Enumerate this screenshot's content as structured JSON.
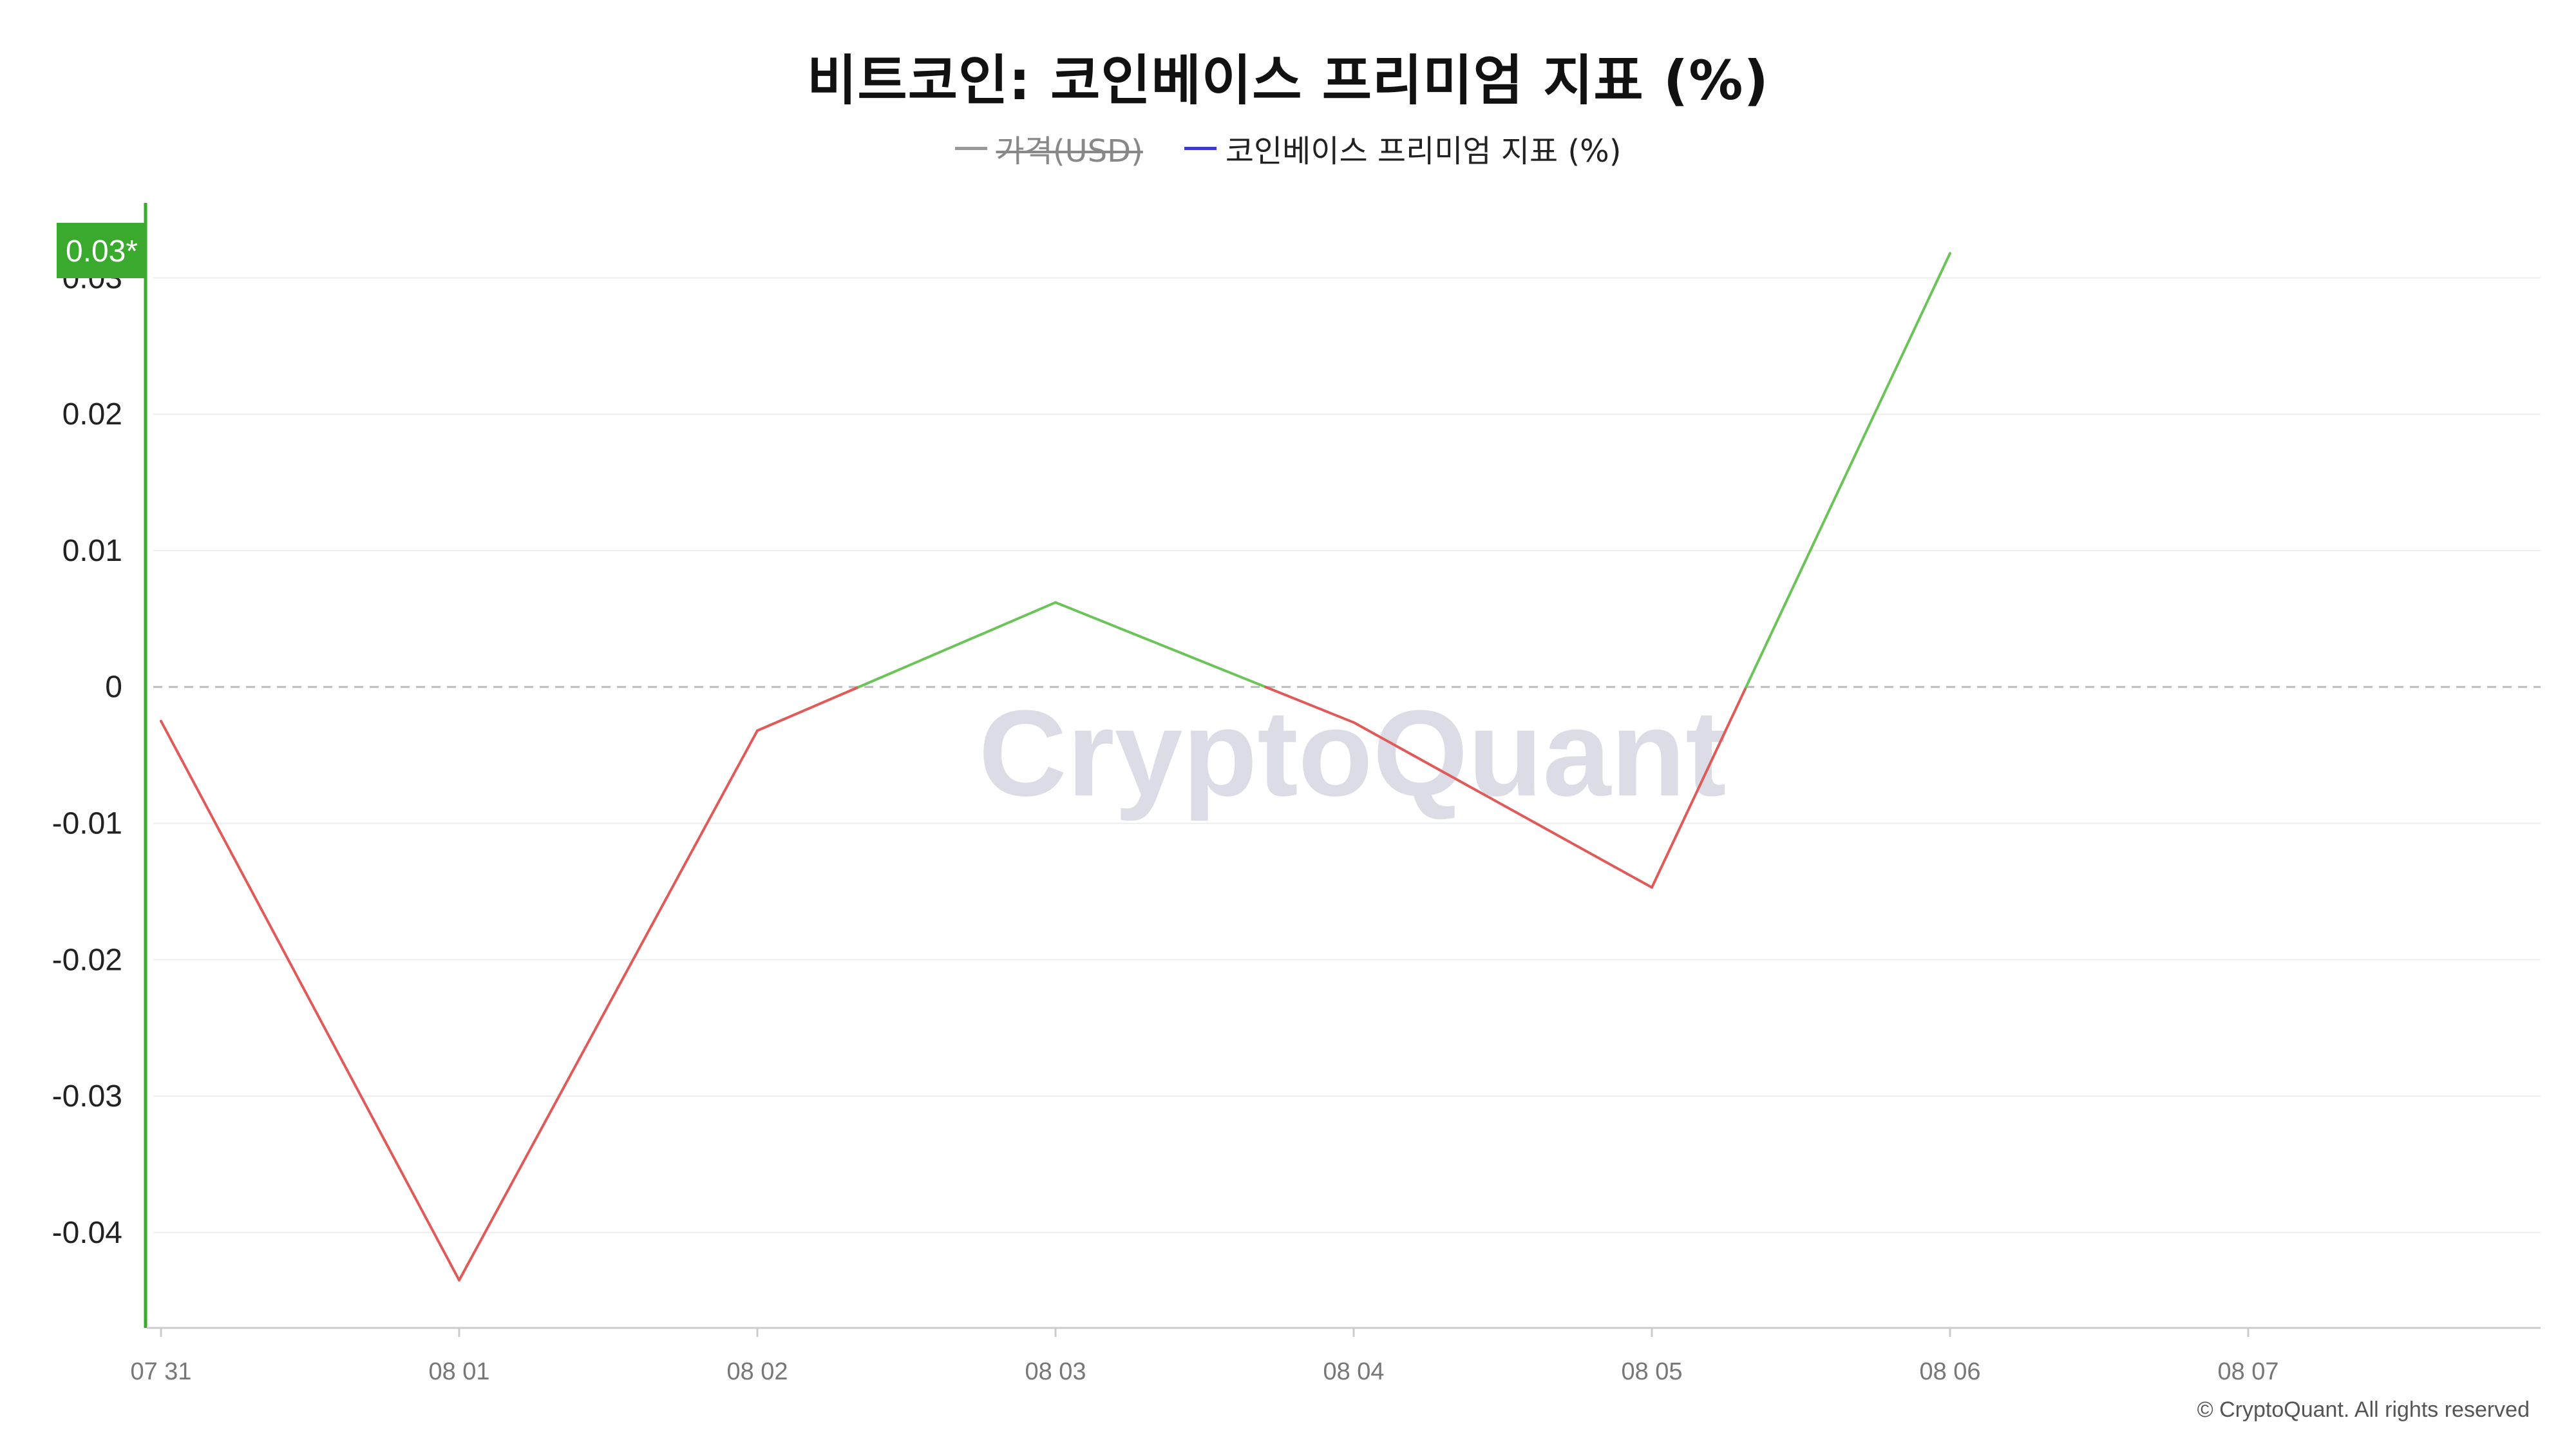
{
  "chart_data": {
    "type": "line",
    "title": "비트코인: 코인베이스 프리미엄 지표 (%)",
    "legend": [
      {
        "name": "가격(USD)",
        "color": "#999999",
        "disabled": true
      },
      {
        "name": "코인베이스 프리미엄 지표 (%)",
        "color": "#3a3acc",
        "disabled": false
      }
    ],
    "x": [
      "07 31",
      "08 01",
      "08 02",
      "08 03",
      "08 04",
      "08 05",
      "08 06",
      "08 07"
    ],
    "series": [
      {
        "name": "코인베이스 프리미엄 지표 (%)",
        "values": [
          -0.0025,
          -0.0435,
          -0.0032,
          0.0062,
          -0.0026,
          -0.0147,
          0.0318,
          null
        ]
      }
    ],
    "y_ticks": [
      "0.03",
      "0.02",
      "0.01",
      "0",
      "-0.01",
      "-0.02",
      "-0.03",
      "-0.04"
    ],
    "ylim": [
      -0.047,
      0.0355
    ],
    "positive_color": "#6cc35a",
    "negative_color": "#e05a5a",
    "current_value_label": "0.03*",
    "current_value_color": "#3aaa2e",
    "zero_line": "dashed",
    "grid": true,
    "legend_position": "top-center"
  },
  "watermark": "CryptoQuant",
  "copyright": "© CryptoQuant. All rights reserved"
}
